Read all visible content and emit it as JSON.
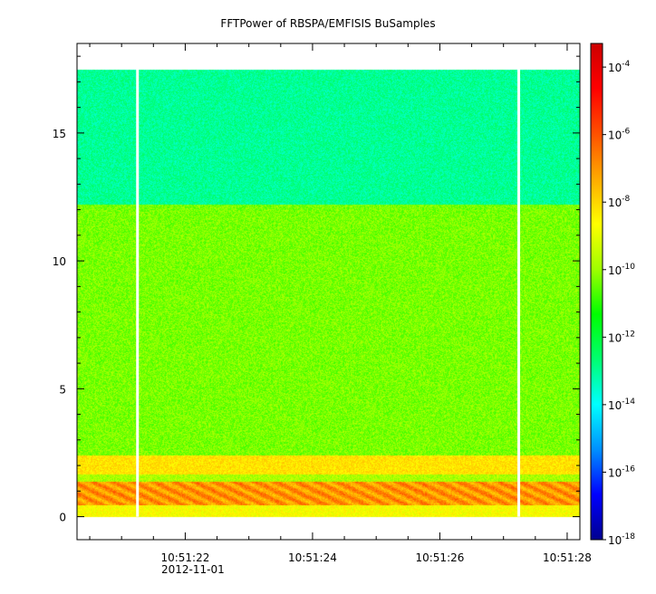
{
  "chart_data": {
    "type": "heatmap",
    "title": "FFTPower of RBSPA/EMFISIS  BuSamples",
    "xlabel": "",
    "ylabel": "",
    "x_range": [
      "10:51:20.3",
      "10:51:28.2"
    ],
    "x_ticks": [
      {
        "value": "10:51:22",
        "label": "10:51:22"
      },
      {
        "value": "10:51:24",
        "label": "10:51:24"
      },
      {
        "value": "10:51:26",
        "label": "10:51:26"
      },
      {
        "value": "10:51:28",
        "label": "10:51:28"
      }
    ],
    "x_minor_tick_seconds": 0.5,
    "x_date_label": "2012-11-01",
    "y_range": [
      -0.9,
      18.5
    ],
    "y_ticks": [
      0,
      5,
      10,
      15
    ],
    "y_minor_ticks": [
      1,
      2,
      3,
      4,
      6,
      7,
      8,
      9,
      11,
      12,
      13,
      14,
      16,
      17,
      18
    ],
    "data_y_max": 17.5,
    "colorbar": {
      "scale": "log",
      "range_exponent": [
        -18,
        -3.3
      ],
      "tick_base": "10",
      "tick_exponents": [
        -4,
        -6,
        -8,
        -10,
        -12,
        -14,
        -16,
        -18
      ],
      "colormap": [
        "#00008f",
        "#0000ff",
        "#0090ff",
        "#00ffff",
        "#00ff70",
        "#00ff00",
        "#a0ff00",
        "#ffff00",
        "#ffaa00",
        "#ff5000",
        "#ff0000",
        "#cc0000"
      ]
    },
    "gaps_x": [
      "10:51:21.25",
      "10:51:27.24"
    ],
    "bands": [
      {
        "y_range": [
          12.2,
          17.5
        ],
        "log10_power": -13.0
      },
      {
        "y_range": [
          2.4,
          12.2
        ],
        "log10_power": -10.3
      },
      {
        "y_range": [
          1.65,
          2.4
        ],
        "log10_power": -8.2
      },
      {
        "y_range": [
          1.4,
          1.65
        ],
        "log10_power": -9.8
      },
      {
        "y_range": [
          0.45,
          1.4
        ],
        "log10_power": -7.0
      },
      {
        "y_range": [
          0.0,
          0.45
        ],
        "log10_power": -8.7
      }
    ]
  }
}
